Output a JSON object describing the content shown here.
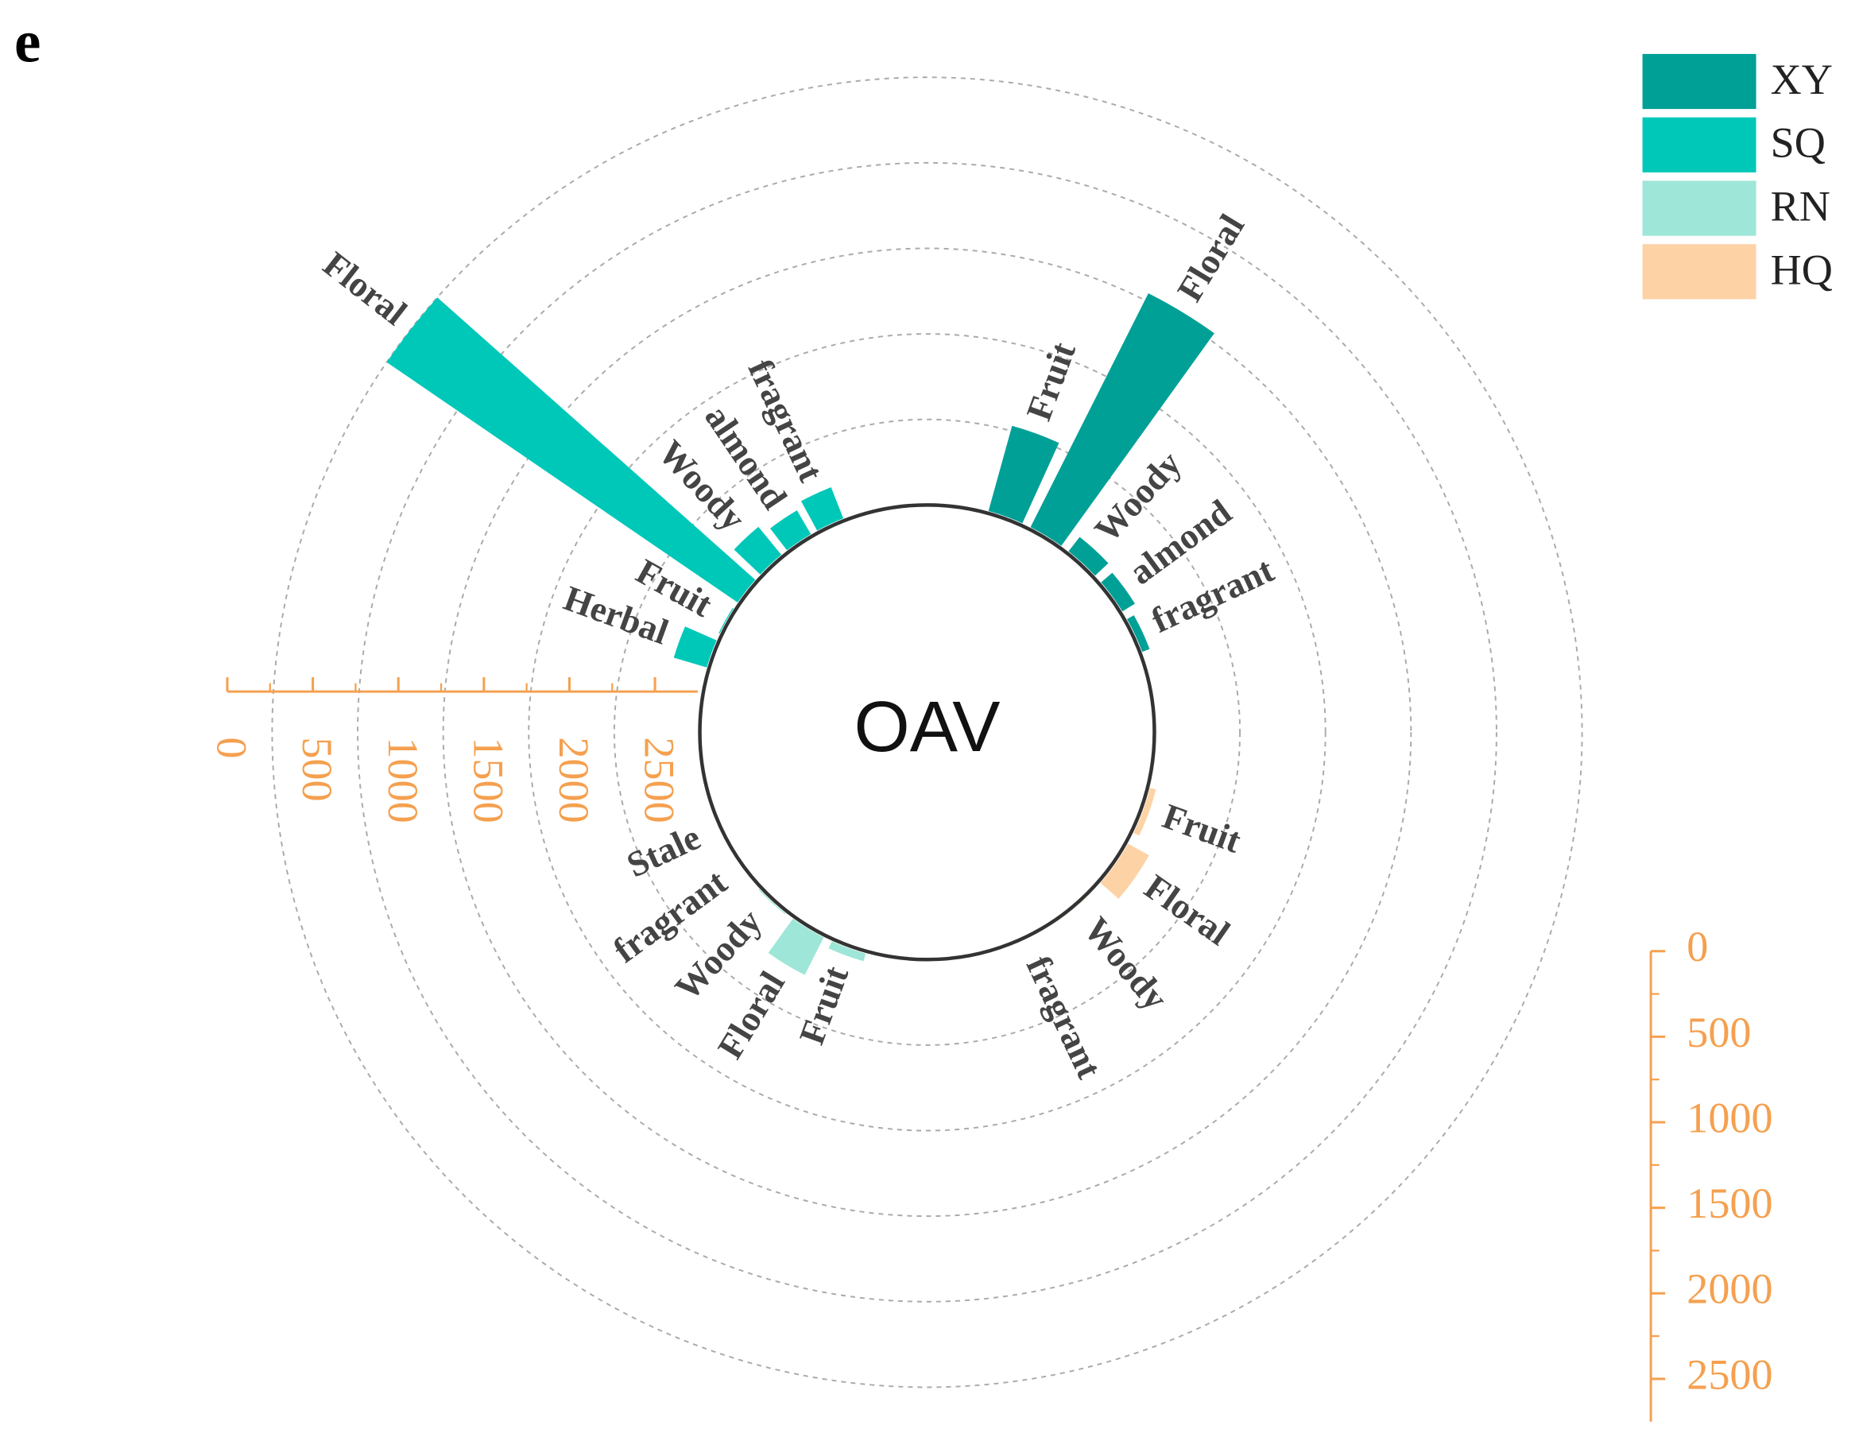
{
  "chart_data": {
    "type": "radial-bar",
    "panel_label": "e",
    "center_label": "OAV",
    "ylim": [
      0,
      2750
    ],
    "yticks": [
      0,
      500,
      1000,
      1500,
      2000,
      2500
    ],
    "grid": true,
    "legend": "top-right",
    "axis_color": "#f5a04f",
    "series": [
      {
        "name": "XY",
        "color": "#00a096",
        "categories": [
          "Fruit",
          "Floral",
          "Woody",
          "almond",
          "fragrant"
        ],
        "values": [
          530,
          1545,
          120,
          100,
          60
        ]
      },
      {
        "name": "SQ",
        "color": "#00c8b9",
        "categories": [
          "Herbal",
          "Fruit",
          "Floral",
          "Woody",
          "almond",
          "fragrant"
        ],
        "values": [
          215,
          20,
          2500,
          225,
          175,
          210
        ]
      },
      {
        "name": "RN",
        "color": "#9ee6d7",
        "categories": [
          "Fruit",
          "Floral",
          "Woody",
          "fragrant",
          "Stale"
        ],
        "values": [
          60,
          260,
          20,
          10,
          10
        ]
      },
      {
        "name": "HQ",
        "color": "#fdd3a6",
        "categories": [
          "Fruit",
          "Floral",
          "Woody",
          "fragrant"
        ],
        "values": [
          50,
          155,
          15,
          10
        ]
      }
    ]
  }
}
